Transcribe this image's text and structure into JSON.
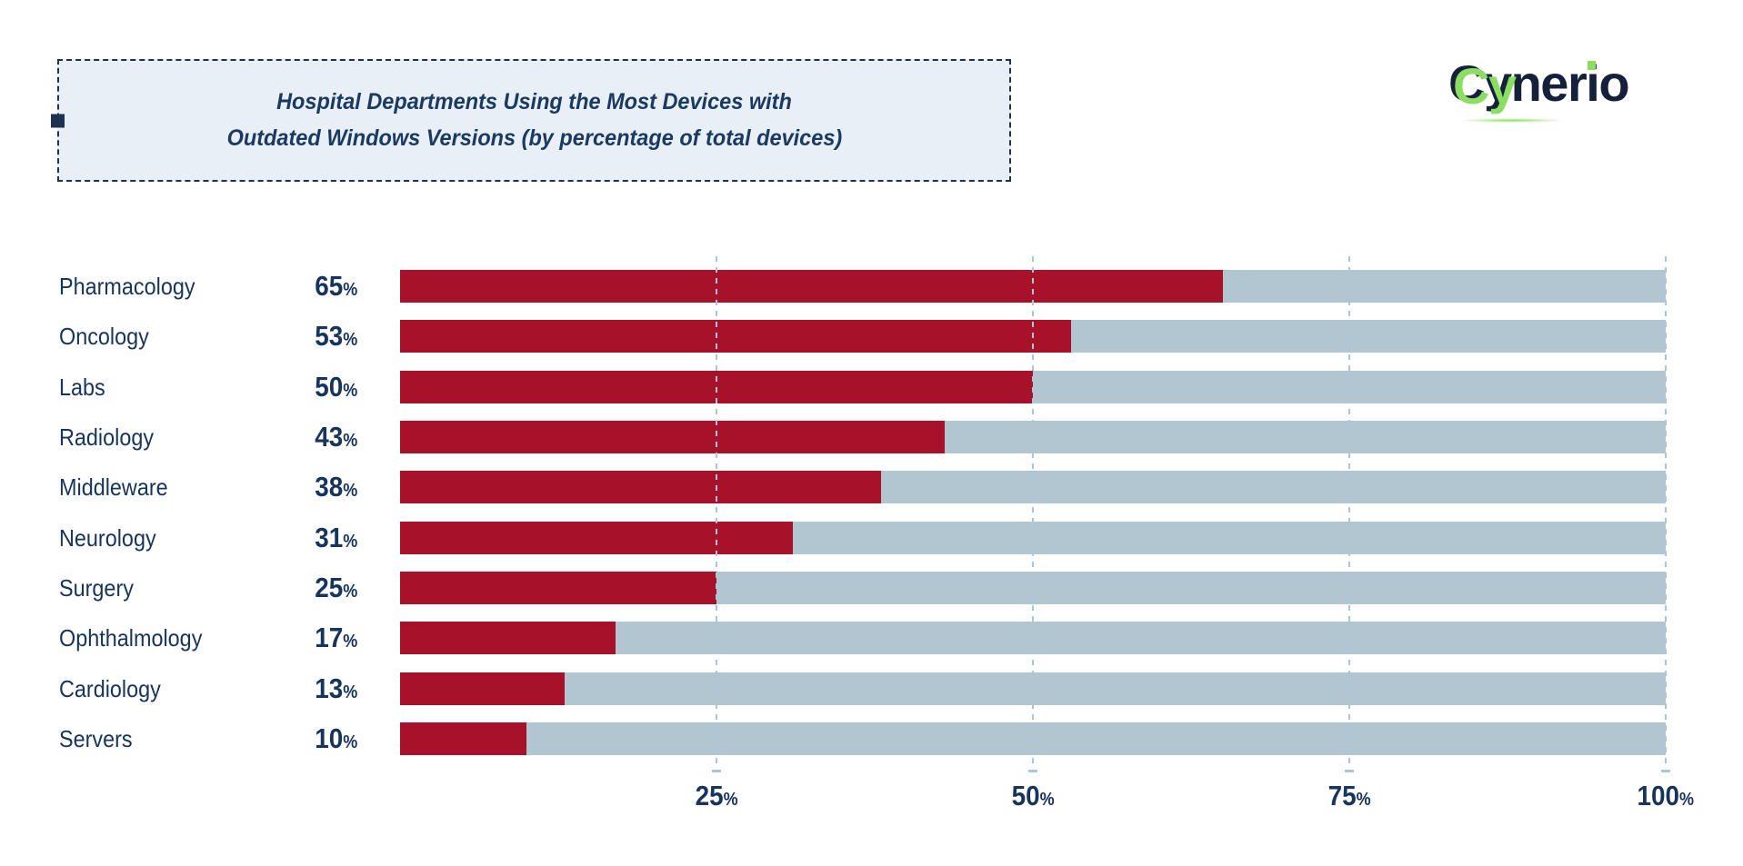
{
  "title_box": {
    "line1": "Hospital Departments Using the Most Devices with",
    "line2": "Outdated Windows Versions (by percentage of total devices)"
  },
  "logo": {
    "full": "Cynerio",
    "cy": "Cy",
    "ner": "ner",
    "i": "i",
    "o": "o"
  },
  "chart_data": {
    "type": "bar",
    "orientation": "horizontal",
    "title": "Hospital Departments Using the Most Devices with Outdated Windows Versions (by percentage of total devices)",
    "categories": [
      "Pharmacology",
      "Oncology",
      "Labs",
      "Radiology",
      "Middleware",
      "Neurology",
      "Surgery",
      "Ophthalmology",
      "Cardiology",
      "Servers"
    ],
    "values": [
      65,
      53,
      50,
      43,
      38,
      31,
      25,
      17,
      13,
      10
    ],
    "value_suffix": "%",
    "xlim": [
      0,
      100
    ],
    "x_tick_values": [
      25,
      50,
      75,
      100
    ],
    "x_tick_labels": [
      "25%",
      "50%",
      "75%",
      "100%"
    ],
    "grid": "vertical-dashed",
    "legend": "none",
    "colors": {
      "bar": "#A7112A",
      "track": "#B2C6D1",
      "gridline": "#A9C6DA",
      "text": "#17345C",
      "title_bg": "#E9EFF7",
      "border_navy": "#1D3150",
      "logo_green": "#8CDE63",
      "logo_navy": "#15213A"
    }
  }
}
